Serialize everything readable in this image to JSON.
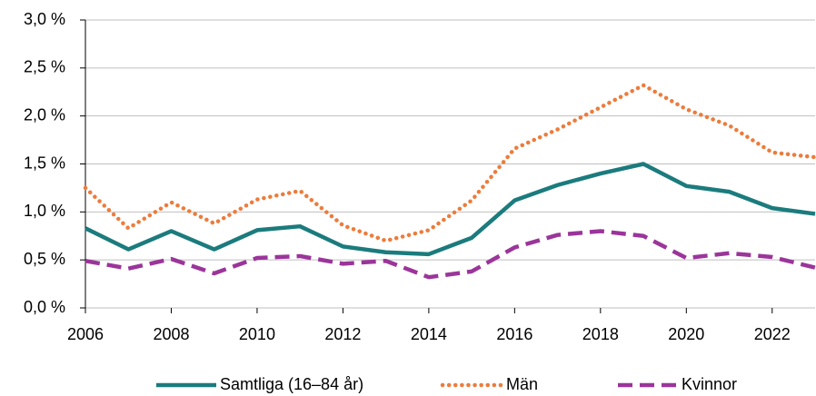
{
  "chart_data": {
    "type": "line",
    "x": [
      2006,
      2007,
      2008,
      2009,
      2010,
      2011,
      2012,
      2013,
      2014,
      2015,
      2016,
      2017,
      2018,
      2019,
      2020,
      2021,
      2022,
      2023
    ],
    "series": [
      {
        "name": "Samtliga (16–84 år)",
        "color": "#1b7b7d",
        "dash": "solid",
        "values": [
          0.83,
          0.61,
          0.8,
          0.61,
          0.81,
          0.85,
          0.64,
          0.58,
          0.56,
          0.73,
          1.12,
          1.28,
          1.4,
          1.5,
          1.27,
          1.21,
          1.04,
          0.98
        ]
      },
      {
        "name": "Män",
        "color": "#ec7c3c",
        "dash": "dotted",
        "values": [
          1.25,
          0.83,
          1.1,
          0.88,
          1.13,
          1.22,
          0.86,
          0.7,
          0.81,
          1.12,
          1.66,
          1.86,
          2.09,
          2.32,
          2.07,
          1.9,
          1.62,
          1.57
        ]
      },
      {
        "name": "Kvinnor",
        "color": "#9b359a",
        "dash": "dashed",
        "values": [
          0.49,
          0.41,
          0.51,
          0.36,
          0.52,
          0.54,
          0.46,
          0.49,
          0.32,
          0.38,
          0.63,
          0.76,
          0.8,
          0.75,
          0.52,
          0.57,
          0.53,
          0.42
        ]
      }
    ],
    "xlim": [
      2006,
      2023
    ],
    "xticks": [
      2006,
      2008,
      2010,
      2012,
      2014,
      2016,
      2018,
      2020,
      2022
    ],
    "ylim": [
      0,
      3
    ],
    "yticks": [
      {
        "value": 0,
        "label": "0,0 %"
      },
      {
        "value": 0.5,
        "label": "0,5 %"
      },
      {
        "value": 1,
        "label": "1,0 %"
      },
      {
        "value": 1.5,
        "label": "1,5 %"
      },
      {
        "value": 2,
        "label": "2,0 %"
      },
      {
        "value": 2.5,
        "label": "2,5 %"
      },
      {
        "value": 3,
        "label": "3,0 %"
      }
    ],
    "grid": true,
    "legend": "bottom"
  }
}
